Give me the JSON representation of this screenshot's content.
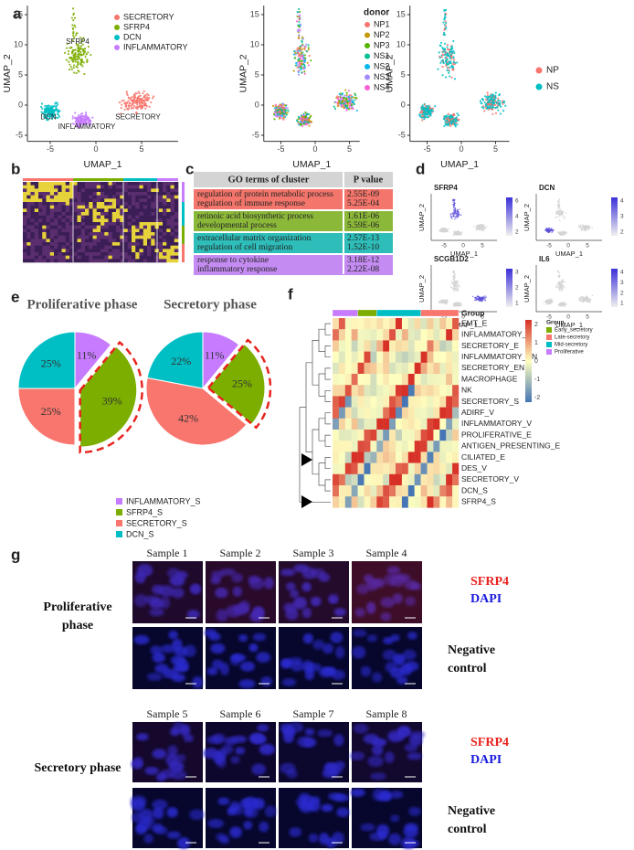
{
  "figure": {
    "panel_labels": [
      "a",
      "b",
      "c",
      "d",
      "e",
      "f",
      "g"
    ],
    "umap": {
      "x_label": "UMAP_1",
      "y_label": "UMAP_2",
      "xticks": [
        -5,
        0,
        5
      ],
      "yticks": [
        -5,
        0,
        5,
        10,
        15
      ],
      "clusters": {
        "names": [
          "SECRETORY",
          "SFRP4",
          "DCN",
          "INFLAMMATORY"
        ],
        "colors": [
          "#f8766d",
          "#7cae00",
          "#00bfc4",
          "#c77cff"
        ],
        "plot_labels": [
          "SFRP4",
          "DCN",
          "INFLAMMATORY",
          "SECRETORY"
        ]
      },
      "donor": {
        "title": "donor",
        "names": [
          "NP1",
          "NP2",
          "NP3",
          "NS1",
          "NS2",
          "NS3",
          "NS4"
        ],
        "colors": [
          "#f8766d",
          "#c49a00",
          "#53b400",
          "#00c094",
          "#00b6eb",
          "#a58aff",
          "#fb61d7"
        ]
      },
      "condition": {
        "names": [
          "NP",
          "NS"
        ],
        "colors": [
          "#f8766d",
          "#00bfc4"
        ]
      }
    },
    "go_table": {
      "header": [
        "GO terms of cluster",
        "P value"
      ],
      "rows": [
        {
          "color": "#f4756b",
          "terms": [
            "regulation of protein metabolic process",
            "regulation of immune response"
          ],
          "p_values": [
            "2.55E-09",
            "5.25E-04"
          ]
        },
        {
          "color": "#8cb83a",
          "terms": [
            "retinoic acid biosynthetic process",
            "developmental process"
          ],
          "p_values": [
            "1.61E-06",
            "5.59E-06"
          ]
        },
        {
          "color": "#2ebdb9",
          "terms": [
            "extracellular matrix organization",
            "regulation of cell migration"
          ],
          "p_values": [
            "2.57E-13",
            "1.52E-10"
          ]
        },
        {
          "color": "#c48cf2",
          "terms": [
            "response to cytokine",
            "inflammatory response"
          ],
          "p_values": [
            "3.18E-12",
            "2.22E-08"
          ]
        }
      ]
    },
    "feature_plots": [
      {
        "gene": "SFRP4",
        "scale": [
          2,
          4,
          6
        ]
      },
      {
        "gene": "DCN",
        "scale": [
          2,
          3,
          4
        ]
      },
      {
        "gene": "SCGB1D2",
        "scale": [
          1,
          2,
          3
        ]
      },
      {
        "gene": "IL6",
        "scale": [
          1,
          2,
          3,
          4
        ]
      }
    ],
    "heatmap": {
      "group_title": "Group",
      "groups": [
        "Early_secretory",
        "Late-secretory",
        "Mid-secretory",
        "Proliferative"
      ],
      "group_colors": [
        "#7cae00",
        "#f8766d",
        "#00bfc4",
        "#c77cff"
      ],
      "scale": [
        2,
        1,
        0,
        -1,
        -2
      ],
      "rows": [
        "EMT_E",
        "INFLAMMATORY_S",
        "SECRETORY_E",
        "INFLAMMATORY_EN",
        "SECRETORY_EN",
        "MACROPHAGE",
        "NK",
        "SECRETORY_S",
        "ADIRF_V",
        "INFLAMMATORY_V",
        "PROLIFERATIVE_E",
        "ANTIGEN_PRESENTING_E",
        "CILIATED_E",
        "DES_V",
        "SECRETORY_V",
        "DCN_S",
        "SFRP4_S"
      ]
    },
    "microscopy": {
      "samples": [
        "Sample 1",
        "Sample 2",
        "Sample 3",
        "Sample 4",
        "Sample 5",
        "Sample 6",
        "Sample 7",
        "Sample 8"
      ],
      "phases": [
        "Proliferative phase",
        "Secretory phase"
      ],
      "stains": [
        "SFRP4",
        "DAPI"
      ],
      "stain_colors": [
        "#e8231e",
        "#1a1ae0"
      ],
      "control": "Negative control"
    }
  },
  "chart_data": [
    {
      "type": "pie",
      "title": "Proliferative phase",
      "categories": [
        "INFLAMMATORY_S",
        "SFRP4_S",
        "SECRETORY_S",
        "DCN_S"
      ],
      "values": [
        11,
        39,
        25,
        25
      ],
      "value_labels": [
        "11%",
        "39%",
        "25%",
        "25%"
      ],
      "colors": [
        "#c77cff",
        "#7cae00",
        "#f8766d",
        "#00bfc4"
      ]
    },
    {
      "type": "pie",
      "title": "Secretory phase",
      "categories": [
        "INFLAMMATORY_S",
        "SFRP4_S",
        "SECRETORY_S",
        "DCN_S"
      ],
      "values": [
        11,
        25,
        42,
        22
      ],
      "value_labels": [
        "11%",
        "25%",
        "42%",
        "22%"
      ],
      "colors": [
        "#c77cff",
        "#7cae00",
        "#f8766d",
        "#00bfc4"
      ]
    }
  ]
}
